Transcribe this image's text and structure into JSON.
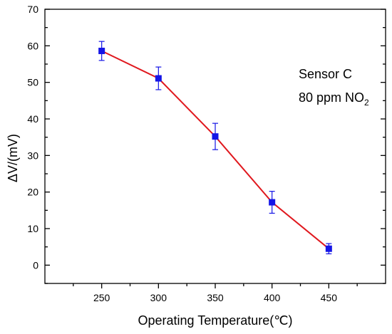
{
  "chart_data": {
    "type": "line",
    "title": "",
    "xlabel": "Operating Temperature(℃)",
    "ylabel": "ΔV/(mV)",
    "x": [
      250,
      300,
      350,
      400,
      450
    ],
    "xlim": [
      200,
      500
    ],
    "ylim": [
      -5,
      70
    ],
    "x_ticks": [
      "250",
      "300",
      "350",
      "400",
      "450"
    ],
    "y_ticks": [
      "0",
      "10",
      "20",
      "30",
      "40",
      "50",
      "60",
      "70"
    ],
    "series": [
      {
        "name": "",
        "values": [
          58.6,
          51.1,
          35.2,
          17.2,
          4.5
        ],
        "error": [
          2.6,
          3.1,
          3.6,
          3.0,
          1.4
        ],
        "line_color": "#e0181e",
        "marker_color": "#1515e6",
        "marker": "square"
      }
    ],
    "annotation": {
      "line1": "Sensor C",
      "line2_main": "80 ppm NO",
      "line2_sub": "2"
    },
    "grid": false,
    "legend": "none"
  }
}
